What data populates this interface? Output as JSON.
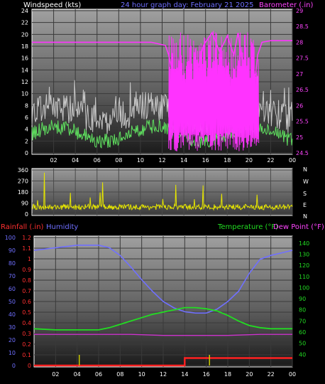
{
  "chart_data": [
    {
      "id": "wind-baro",
      "type": "line",
      "title": "24 hour graph day:  February 21 2025",
      "ylabel_left": "Windspeed (kts)",
      "ylabel_right": "Barometer (.in)",
      "x_ticks": [
        "02",
        "04",
        "06",
        "08",
        "10",
        "12",
        "14",
        "16",
        "18",
        "20",
        "22",
        "00"
      ],
      "y_left_ticks": [
        "0",
        "2",
        "4",
        "6",
        "8",
        "10",
        "12",
        "14",
        "16",
        "18",
        "20",
        "22",
        "24"
      ],
      "y_left_range": [
        0,
        24
      ],
      "y_right_ticks": [
        "24.5",
        "25",
        "25.5",
        "26",
        "26.5",
        "27",
        "27.5",
        "28",
        "28.5",
        "29"
      ],
      "y_right_range": [
        24.5,
        29
      ],
      "series": [
        {
          "name": "Gust",
          "color": "#c8c8c8"
        },
        {
          "name": "Windspeed",
          "color": "#5fe05f"
        },
        {
          "name": "Barometer",
          "color": "#ff33ff",
          "x": [
            0,
            11,
            12.3,
            12.6,
            13.0,
            13.5,
            14.2,
            15.0,
            15.8,
            16.6,
            17.3,
            18.0,
            18.6,
            19.0,
            19.6,
            20.3,
            20.8,
            21.2,
            22,
            24
          ],
          "values": [
            28.0,
            28.0,
            27.9,
            27.6,
            27.0,
            26.2,
            25.6,
            26.8,
            27.9,
            28.3,
            27.7,
            28.2,
            27.6,
            28.3,
            26.9,
            26.0,
            27.6,
            28.0,
            28.05,
            28.05
          ]
        }
      ]
    },
    {
      "id": "wind-dir",
      "type": "line",
      "y_ticks": [
        "0",
        "90",
        "180",
        "270",
        "360"
      ],
      "y_range": [
        0,
        360
      ],
      "x_ticks": [],
      "compass": [
        "N",
        "W",
        "S",
        "E",
        "N"
      ],
      "series": [
        {
          "name": "Wind direction",
          "color": "#e6e600"
        }
      ]
    },
    {
      "id": "rain-temp",
      "type": "line",
      "ylabel_rainfall": "Rainfall (.in)",
      "ylabel_humidity": "Humidity",
      "ylabel_temperature": "Temperature (°F)",
      "ylabel_dewpoint": "Dew Point (°F)",
      "x_ticks": [
        "02",
        "04",
        "06",
        "08",
        "10",
        "12",
        "14",
        "16",
        "18",
        "20",
        "22",
        "00"
      ],
      "humidity_ticks": [
        "0",
        "10",
        "20",
        "30",
        "40",
        "50",
        "60",
        "70",
        "80",
        "90",
        "100"
      ],
      "humidity_range": [
        0,
        100
      ],
      "rain_ticks": [
        "0",
        "0.1",
        "0.2",
        "0.3",
        "0.4",
        "0.5",
        "0.6",
        "0.7",
        "0.8",
        "0.9",
        "1",
        "1.1",
        "1.2"
      ],
      "rain_range": [
        0,
        1.2
      ],
      "temp_ticks": [
        "40",
        "50",
        "60",
        "70",
        "80",
        "90",
        "100",
        "110",
        "120",
        "130",
        "140"
      ],
      "temp_range": [
        30,
        145
      ],
      "series": [
        {
          "name": "Humidity",
          "color": "#7070ff",
          "x": [
            0,
            2,
            4,
            6,
            7,
            8,
            9,
            10,
            11,
            12,
            13,
            14,
            15,
            16,
            17,
            18,
            19,
            20,
            21,
            22,
            23,
            24
          ],
          "values": [
            90,
            92,
            94,
            94,
            92,
            86,
            77,
            67,
            58,
            50,
            45,
            42,
            41,
            41,
            44,
            50,
            58,
            72,
            83,
            86,
            88,
            90
          ]
        },
        {
          "name": "Temperature",
          "color": "#22dd22",
          "x": [
            0,
            2,
            4,
            6,
            7,
            8,
            9,
            10,
            11,
            12,
            13,
            14,
            15,
            16,
            17,
            18,
            19,
            20,
            21,
            22,
            24
          ],
          "values": [
            63,
            62,
            62,
            62,
            64,
            67,
            70,
            73,
            76,
            78,
            80,
            82,
            82,
            81,
            79,
            75,
            70,
            66,
            64,
            63,
            63
          ]
        },
        {
          "name": "Dew Point",
          "color": "#cc33cc",
          "x": [
            0,
            3,
            6,
            9,
            12,
            15,
            18,
            21,
            24
          ],
          "values": [
            58,
            58,
            58,
            58,
            57,
            57,
            57,
            58,
            58
          ]
        },
        {
          "name": "Rainfall",
          "color": "#ff2020",
          "x": [
            0,
            14,
            14,
            24
          ],
          "values": [
            0.0,
            0.0,
            0.07,
            0.07
          ]
        },
        {
          "name": "Rain rate",
          "color": "#cccc00",
          "x": [
            4.2,
            16.3
          ],
          "values": [
            0.1,
            0.1
          ]
        }
      ]
    }
  ]
}
